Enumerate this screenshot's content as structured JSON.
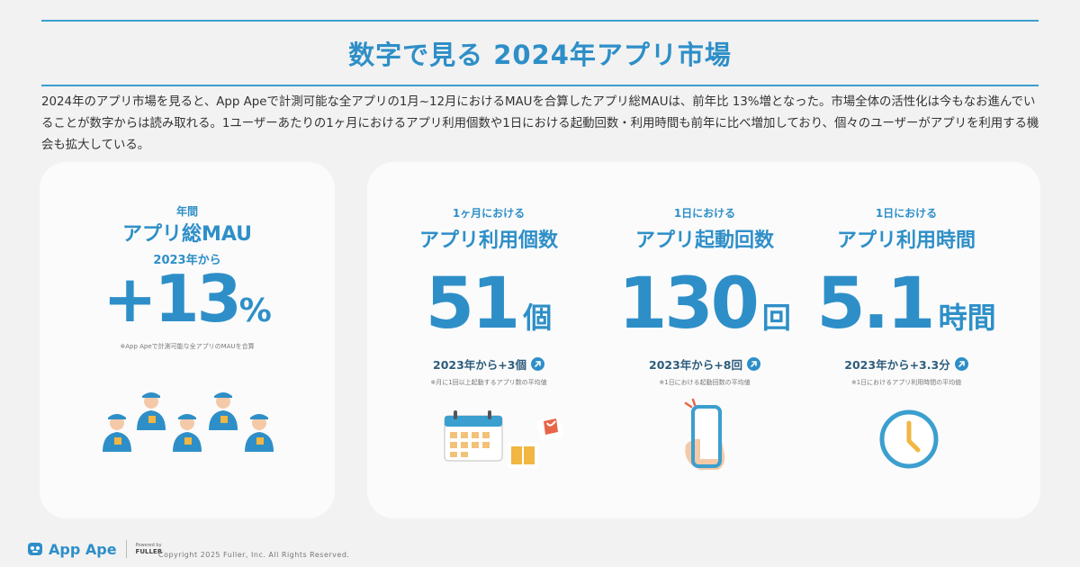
{
  "page": {
    "title": "数字で見る 2024年アプリ市場",
    "intro": "2024年のアプリ市場を見ると、App Apeで計測可能な全アプリの1月~12月におけるMAUを合算したアプリ総MAUは、前年比 13%増となった。市場全体の活性化は今もなお進んでいることが数字からは読み取れる。1ユーザーあたりの1ヶ月におけるアプリ利用個数や1日における起動回数・利用時間も前年に比べ増加しており、個々のユーザーがアプリを利用する機会も拡大している。"
  },
  "mau": {
    "kicker": "年間",
    "heading": "アプリ総MAU",
    "sub": "2023年から",
    "value": "+13",
    "unit": "%",
    "note": "※App Apeで計測可能な全アプリのMAUを合算"
  },
  "stats": [
    {
      "kicker": "1ヶ月における",
      "heading": "アプリ利用個数",
      "value": "51",
      "unit": "個",
      "delta": "2023年から+3個",
      "note": "※月に1回以上起動するアプリ数の平均値"
    },
    {
      "kicker": "1日における",
      "heading": "アプリ起動回数",
      "value": "130",
      "unit": "回",
      "delta": "2023年から+8回",
      "note": "※1日における起動回数の平均値"
    },
    {
      "kicker": "1日における",
      "heading": "アプリ利用時間",
      "value": "5.1",
      "unit": "時間",
      "delta": "2023年から+3.3分",
      "note": "※1日におけるアプリ利用時間の平均値"
    }
  ],
  "footer": {
    "brand": "App Ape",
    "powered_by": "Powered by",
    "company": "FULLER",
    "copyright": "Copyright 2025 Fuller, Inc. All Rights Reserved."
  },
  "colors": {
    "accent": "#2e8fc8",
    "dark": "#2e5d7c",
    "background": "#f2f2f2"
  },
  "icons": [
    "people-icon",
    "calendar-icon",
    "bag-icon",
    "book-icon",
    "smartphone-icon",
    "clock-icon",
    "arrow-up-right-icon",
    "app-ape-logo-icon"
  ]
}
